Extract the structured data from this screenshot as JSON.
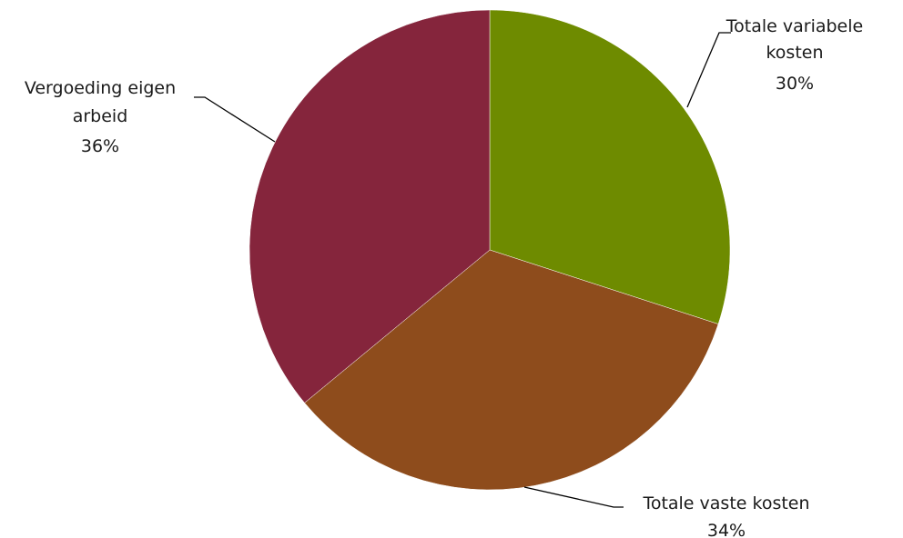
{
  "chart_data": {
    "type": "pie",
    "title": "",
    "slices": [
      {
        "label_lines": [
          "Totale variabele",
          "kosten"
        ],
        "value": 30,
        "percent_label": "30%",
        "color": "#6e8b00"
      },
      {
        "label_lines": [
          "Totale vaste kosten"
        ],
        "value": 34,
        "percent_label": "34%",
        "color": "#8e4c1c"
      },
      {
        "label_lines": [
          "Vergoeding eigen",
          "arbeid"
        ],
        "value": 36,
        "percent_label": "36%",
        "color": "#85253c"
      }
    ],
    "start_angle": "12 o'clock",
    "direction": "clockwise",
    "legend": "none",
    "data_labels": "outside with leader lines"
  }
}
